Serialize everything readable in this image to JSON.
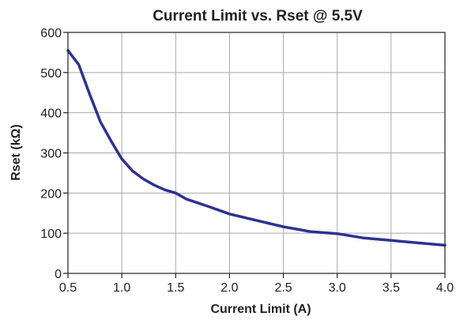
{
  "chart_data": {
    "type": "line",
    "title": "Current Limit vs. Rset @ 5.5V",
    "xlabel": "Current Limit (A)",
    "ylabel": "Rset (kΩ)",
    "xlim": [
      0.5,
      4.0
    ],
    "ylim": [
      0,
      600
    ],
    "xticks": [
      "0.5",
      "1.0",
      "1.5",
      "2.0",
      "2.5",
      "3.0",
      "3.5",
      "4.0"
    ],
    "yticks": [
      "0",
      "100",
      "200",
      "300",
      "400",
      "500",
      "600"
    ],
    "grid": true,
    "legend": "none",
    "series": [
      {
        "color": "#2e3192",
        "x": [
          0.5,
          0.6,
          0.7,
          0.8,
          0.9,
          1.0,
          1.1,
          1.2,
          1.3,
          1.4,
          1.5,
          1.6,
          1.8,
          2.0,
          2.25,
          2.5,
          2.75,
          3.0,
          3.25,
          3.5,
          3.75,
          4.0
        ],
        "y": [
          555,
          520,
          447,
          378,
          330,
          285,
          255,
          235,
          220,
          208,
          200,
          185,
          167,
          148,
          132,
          116,
          104,
          99,
          88,
          82,
          76,
          70
        ]
      }
    ]
  }
}
